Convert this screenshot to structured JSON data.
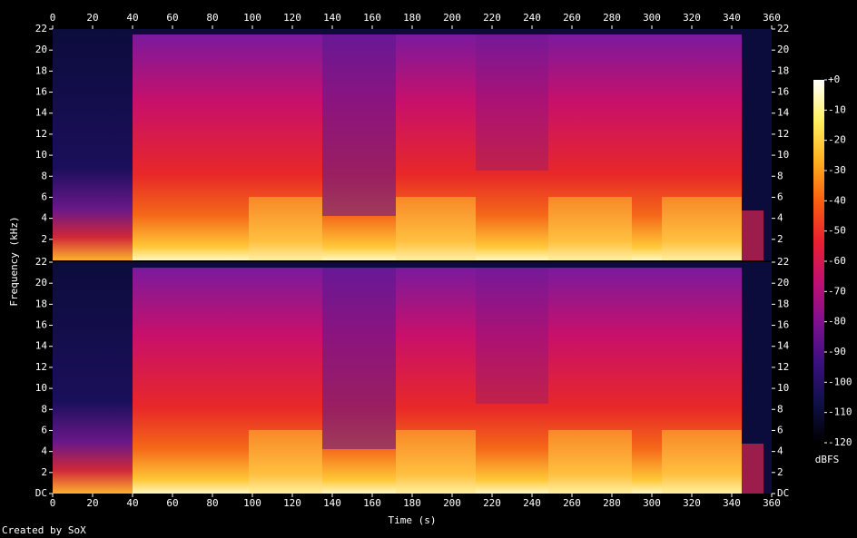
{
  "chart_data": {
    "type": "spectrogram",
    "x_label": "Time (s)",
    "y_label": "Frequency (kHz)",
    "xlim": [
      0,
      360
    ],
    "xticks": [
      0,
      20,
      40,
      60,
      80,
      100,
      120,
      140,
      160,
      180,
      200,
      220,
      240,
      260,
      280,
      300,
      320,
      340,
      360
    ],
    "channels": [
      {
        "ylim": [
          0,
          22
        ],
        "yticks": [
          2,
          4,
          6,
          8,
          10,
          12,
          14,
          16,
          18,
          20,
          22
        ]
      },
      {
        "ylim": [
          0,
          22
        ],
        "yticks": [
          {
            "value": 0,
            "label": "DC"
          },
          2,
          4,
          6,
          8,
          10,
          12,
          14,
          16,
          18,
          20,
          22
        ]
      }
    ],
    "colorbar": {
      "label": "dBFS",
      "lim": [
        -120,
        0
      ],
      "ticks": [
        {
          "value": 0,
          "label": "+0"
        },
        -10,
        -20,
        -30,
        -40,
        -50,
        -60,
        -70,
        -80,
        -90,
        -100,
        -110,
        -120
      ],
      "colormap": [
        "#000000",
        "#10104a",
        "#3a1080",
        "#801090",
        "#c01070",
        "#e82030",
        "#f86010",
        "#ffb020",
        "#fff060",
        "#ffffff"
      ]
    }
  },
  "footer": "Created by SoX"
}
